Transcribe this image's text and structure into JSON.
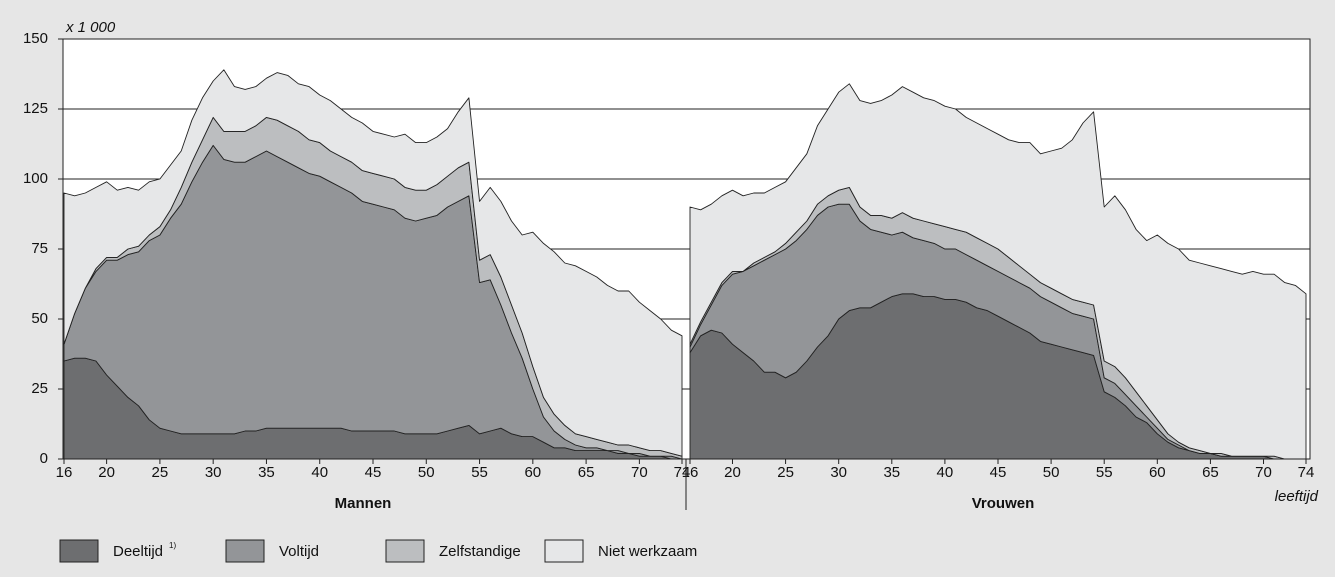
{
  "chart_data": {
    "type": "area",
    "stacked": true,
    "y_unit": "x 1 000",
    "x_label": "leeftijd",
    "ylim": [
      0,
      150
    ],
    "yticks": [
      0,
      25,
      50,
      75,
      100,
      125,
      150
    ],
    "grid": true,
    "series": [
      {
        "name": "Deeltijd",
        "note": "1)",
        "color": "#6d6e70"
      },
      {
        "name": "Voltijd",
        "color": "#939598"
      },
      {
        "name": "Zelfstandige",
        "color": "#bcbec0"
      },
      {
        "name": "Niet werkzaam",
        "color": "#e6e7e8"
      }
    ],
    "panels": [
      {
        "title": "Mannen",
        "xlim": [
          16,
          74
        ],
        "xticks": [
          16,
          20,
          25,
          30,
          35,
          40,
          45,
          50,
          55,
          60,
          65,
          70,
          74
        ],
        "x": [
          16,
          17,
          18,
          19,
          20,
          21,
          22,
          23,
          24,
          25,
          26,
          27,
          28,
          29,
          30,
          31,
          32,
          33,
          34,
          35,
          36,
          37,
          38,
          39,
          40,
          41,
          42,
          43,
          44,
          45,
          46,
          47,
          48,
          49,
          50,
          51,
          52,
          53,
          54,
          55,
          56,
          57,
          58,
          59,
          60,
          61,
          62,
          63,
          64,
          65,
          66,
          67,
          68,
          69,
          70,
          71,
          72,
          73,
          74
        ],
        "values": [
          [
            35,
            36,
            36,
            35,
            30,
            26,
            22,
            19,
            14,
            11,
            10,
            9,
            9,
            9,
            9,
            9,
            9,
            10,
            10,
            11,
            11,
            11,
            11,
            11,
            11,
            11,
            11,
            10,
            10,
            10,
            10,
            10,
            9,
            9,
            9,
            9,
            10,
            11,
            12,
            9,
            10,
            11,
            9,
            8,
            8,
            6,
            4,
            4,
            3,
            3,
            3,
            3,
            2,
            2,
            1,
            1,
            1,
            0,
            0
          ],
          [
            6,
            16,
            25,
            32,
            41,
            45,
            51,
            55,
            64,
            69,
            76,
            82,
            90,
            97,
            103,
            98,
            97,
            96,
            98,
            99,
            97,
            95,
            93,
            91,
            90,
            88,
            86,
            85,
            82,
            81,
            80,
            79,
            77,
            76,
            77,
            78,
            80,
            81,
            82,
            54,
            54,
            44,
            36,
            28,
            17,
            9,
            6,
            3,
            2,
            1,
            1,
            0,
            1,
            0,
            1,
            0,
            0,
            1,
            0
          ],
          [
            0,
            0,
            0,
            1,
            1,
            1,
            2,
            2,
            2,
            3,
            3,
            6,
            7,
            8,
            10,
            10,
            11,
            11,
            11,
            12,
            13,
            13,
            13,
            12,
            12,
            11,
            11,
            11,
            11,
            11,
            11,
            11,
            11,
            11,
            10,
            11,
            11,
            12,
            12,
            8,
            9,
            10,
            10,
            9,
            8,
            7,
            6,
            5,
            4,
            4,
            3,
            3,
            2,
            3,
            2,
            2,
            2,
            1,
            1
          ],
          [
            54,
            42,
            34,
            29,
            27,
            24,
            22,
            20,
            19,
            17,
            16,
            13,
            15,
            15,
            13,
            22,
            16,
            15,
            14,
            14,
            17,
            18,
            17,
            19,
            17,
            18,
            17,
            16,
            17,
            15,
            15,
            15,
            19,
            17,
            17,
            17,
            17,
            20,
            23,
            21,
            24,
            27,
            30,
            35,
            48,
            55,
            58,
            58,
            60,
            59,
            58,
            56,
            55,
            55,
            52,
            50,
            47,
            44,
            43
          ]
        ]
      },
      {
        "title": "Vrouwen",
        "xlim": [
          16,
          74
        ],
        "xticks": [
          16,
          20,
          25,
          30,
          35,
          40,
          45,
          50,
          55,
          60,
          65,
          70,
          74
        ],
        "x": [
          16,
          17,
          18,
          19,
          20,
          21,
          22,
          23,
          24,
          25,
          26,
          27,
          28,
          29,
          30,
          31,
          32,
          33,
          34,
          35,
          36,
          37,
          38,
          39,
          40,
          41,
          42,
          43,
          44,
          45,
          46,
          47,
          48,
          49,
          50,
          51,
          52,
          53,
          54,
          55,
          56,
          57,
          58,
          59,
          60,
          61,
          62,
          63,
          64,
          65,
          66,
          67,
          68,
          69,
          70,
          71,
          72,
          73,
          74
        ],
        "values": [
          [
            38,
            44,
            46,
            45,
            41,
            38,
            35,
            31,
            31,
            29,
            31,
            35,
            40,
            44,
            50,
            53,
            54,
            54,
            56,
            58,
            59,
            59,
            58,
            58,
            57,
            57,
            56,
            54,
            53,
            51,
            49,
            47,
            45,
            42,
            41,
            40,
            39,
            38,
            37,
            24,
            22,
            19,
            15,
            13,
            9,
            6,
            4,
            3,
            2,
            2,
            1,
            1,
            1,
            1,
            1,
            0,
            0,
            0,
            0
          ],
          [
            2,
            4,
            9,
            17,
            25,
            29,
            34,
            40,
            42,
            46,
            47,
            47,
            47,
            46,
            41,
            38,
            31,
            28,
            25,
            22,
            22,
            20,
            20,
            19,
            18,
            18,
            17,
            17,
            16,
            16,
            16,
            16,
            16,
            16,
            15,
            14,
            13,
            13,
            13,
            5,
            5,
            4,
            4,
            2,
            2,
            1,
            1,
            0,
            0,
            0,
            0,
            0,
            0,
            0,
            0,
            0,
            0,
            0,
            0
          ],
          [
            1,
            1,
            1,
            1,
            1,
            0,
            1,
            1,
            1,
            2,
            3,
            3,
            4,
            4,
            5,
            6,
            5,
            5,
            6,
            6,
            7,
            7,
            7,
            7,
            8,
            7,
            8,
            8,
            8,
            8,
            7,
            6,
            5,
            5,
            5,
            5,
            5,
            5,
            5,
            6,
            6,
            6,
            5,
            4,
            3,
            2,
            1,
            1,
            1,
            0,
            1,
            0,
            0,
            0,
            0,
            1,
            0,
            0,
            0
          ],
          [
            49,
            40,
            35,
            31,
            29,
            27,
            25,
            23,
            23,
            22,
            23,
            24,
            28,
            31,
            35,
            37,
            38,
            40,
            41,
            44,
            45,
            45,
            44,
            44,
            43,
            43,
            41,
            41,
            41,
            41,
            42,
            44,
            47,
            46,
            49,
            52,
            57,
            64,
            69,
            55,
            61,
            60,
            58,
            59,
            66,
            68,
            69,
            67,
            67,
            67,
            66,
            66,
            65,
            66,
            65,
            65,
            63,
            62,
            59
          ]
        ]
      }
    ]
  }
}
